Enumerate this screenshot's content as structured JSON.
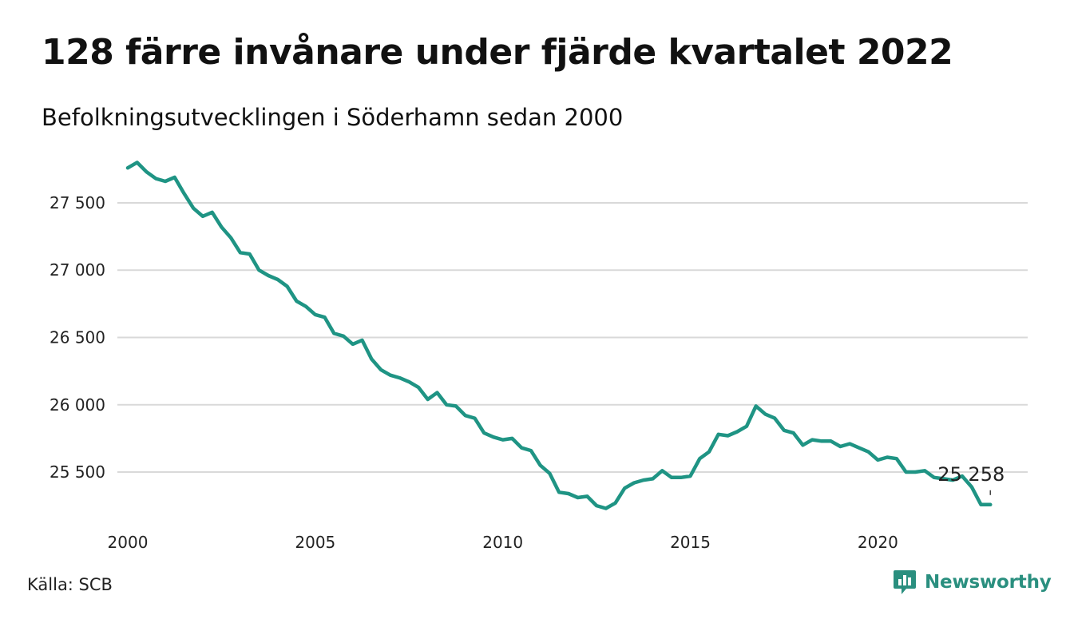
{
  "header": {
    "title": "128 färre invånare under fjärde kvartalet 2022",
    "subtitle": "Befolkningsutvecklingen i Söderhamn sedan 2000"
  },
  "footer": {
    "source": "Källa: SCB",
    "brand": "Newsworthy",
    "brand_icon": "bar-chart-speech-bubble-icon",
    "brand_color": "#2a8f7f"
  },
  "chart_data": {
    "type": "line",
    "title": "128 färre invånare under fjärde kvartalet 2022",
    "subtitle": "Befolkningsutvecklingen i Söderhamn sedan 2000",
    "xlabel": "",
    "ylabel": "",
    "xlim": [
      2000.0,
      2023.25
    ],
    "ylim": [
      25150,
      27850
    ],
    "x_ticks": [
      2000,
      2005,
      2010,
      2015,
      2020
    ],
    "x_tick_labels": [
      "2000",
      "2005",
      "2010",
      "2015",
      "2020"
    ],
    "y_ticks": [
      25500,
      26000,
      26500,
      27000,
      27500
    ],
    "y_tick_labels": [
      "25 500",
      "26 000",
      "26 500",
      "27 000",
      "27 500"
    ],
    "grid": "horizontal",
    "line_color": "#1f9484",
    "end_label": "25 258",
    "series": [
      {
        "x": [
          2000.0,
          2000.25,
          2000.5,
          2000.75,
          2001.0,
          2001.25,
          2001.5,
          2001.75,
          2002.0,
          2002.25,
          2002.5,
          2002.75,
          2003.0,
          2003.25,
          2003.5,
          2003.75,
          2004.0,
          2004.25,
          2004.5,
          2004.75,
          2005.0,
          2005.25,
          2005.5,
          2005.75,
          2006.0,
          2006.25,
          2006.5,
          2006.75,
          2007.0,
          2007.25,
          2007.5,
          2007.75,
          2008.0,
          2008.25,
          2008.5,
          2008.75,
          2009.0,
          2009.25,
          2009.5,
          2009.75,
          2010.0,
          2010.25,
          2010.5,
          2010.75,
          2011.0,
          2011.25,
          2011.5,
          2011.75,
          2012.0,
          2012.25,
          2012.5,
          2012.75,
          2013.0,
          2013.25,
          2013.5,
          2013.75,
          2014.0,
          2014.25,
          2014.5,
          2014.75,
          2015.0,
          2015.25,
          2015.5,
          2015.75,
          2016.0,
          2016.25,
          2016.5,
          2016.75,
          2017.0,
          2017.25,
          2017.5,
          2017.75,
          2018.0,
          2018.25,
          2018.5,
          2018.75,
          2019.0,
          2019.25,
          2019.5,
          2019.75,
          2020.0,
          2020.25,
          2020.5,
          2020.75,
          2021.0,
          2021.25,
          2021.5,
          2021.75,
          2022.0,
          2022.25,
          2022.5,
          2022.75,
          2023.0
        ],
        "values": [
          27760,
          27800,
          27730,
          27680,
          27660,
          27690,
          27570,
          27460,
          27400,
          27430,
          27320,
          27240,
          27130,
          27120,
          27000,
          26960,
          26930,
          26880,
          26770,
          26730,
          26670,
          26650,
          26530,
          26510,
          26450,
          26480,
          26340,
          26260,
          26220,
          26200,
          26170,
          26130,
          26040,
          26090,
          26000,
          25990,
          25920,
          25900,
          25790,
          25760,
          25740,
          25750,
          25680,
          25660,
          25550,
          25490,
          25350,
          25340,
          25310,
          25320,
          25250,
          25230,
          25270,
          25380,
          25420,
          25440,
          25450,
          25510,
          25460,
          25460,
          25470,
          25600,
          25650,
          25780,
          25770,
          25800,
          25840,
          25990,
          25930,
          25900,
          25810,
          25790,
          25700,
          25740,
          25730,
          25730,
          25690,
          25710,
          25680,
          25650,
          25590,
          25610,
          25600,
          25500,
          25500,
          25510,
          25460,
          25450,
          25440,
          25470,
          25390,
          25258,
          25258
        ]
      }
    ]
  }
}
